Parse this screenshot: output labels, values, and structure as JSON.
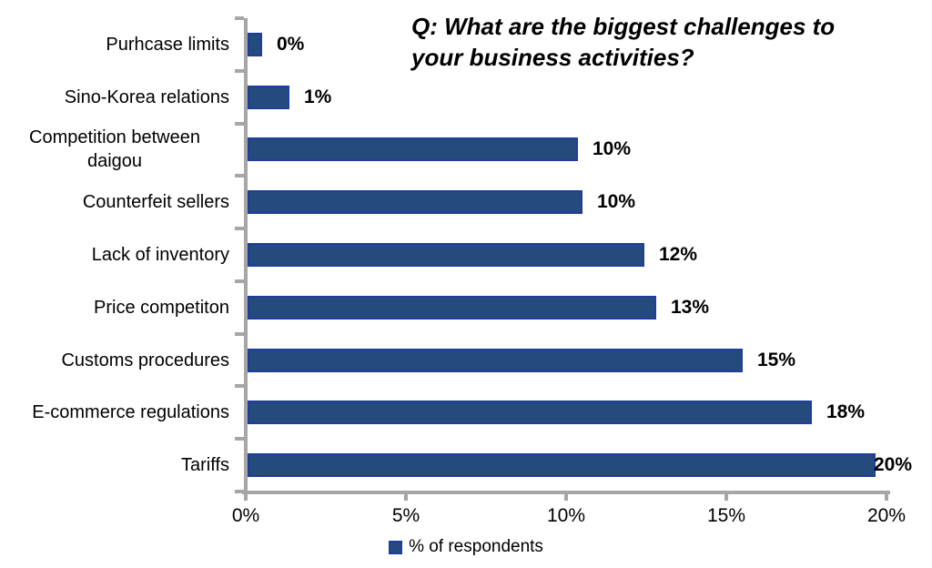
{
  "chart_data": {
    "type": "bar",
    "orientation": "horizontal",
    "title": "Q: What are the biggest challenges to your business activities?",
    "title_lines": [
      "Q: What are the biggest challenges to",
      "your business activities?"
    ],
    "categories": [
      "Purhcase limits",
      "Sino-Korea relations",
      "Competition between daigou",
      "Counterfeit sellers",
      "Lack of inventory",
      "Price competiton",
      "Customs procedures",
      "E-commerce regulations",
      "Tariffs"
    ],
    "values": [
      0,
      1,
      10,
      10,
      12,
      13,
      15,
      18,
      20
    ],
    "value_labels": [
      "0%",
      "1%",
      "10%",
      "10%",
      "12%",
      "13%",
      "15%",
      "18%",
      "20%"
    ],
    "drawn_values": [
      0.45,
      1.3,
      10.3,
      10.45,
      12.4,
      12.75,
      15.45,
      17.6,
      19.6
    ],
    "xlabel": "",
    "ylabel": "",
    "xlim": [
      0,
      20
    ],
    "x_ticks": [
      "0%",
      "5%",
      "10%",
      "15%",
      "20%"
    ],
    "x_tick_values": [
      0,
      5,
      10,
      15,
      20
    ],
    "grid": false,
    "legend_label": "% of respondents",
    "legend_position": "bottom-center",
    "colors": {
      "bar_fill": "#254B7C",
      "bar_border": "#1F3D9C",
      "axis": "#A6A6A6",
      "text": "#000000"
    }
  }
}
